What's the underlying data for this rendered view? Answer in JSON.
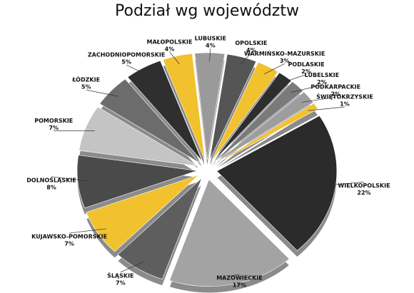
{
  "chart_data": {
    "type": "pie",
    "title": "Podział wg województw",
    "categories": [
      "LUBUSKIE",
      "OPOLSKIE",
      "WARMIŃSKO-MAZURSKIE",
      "PODLASKIE",
      "LUBELSKIE",
      "PODKARPACKIE",
      "ŚWIĘTOKRZYSKIE",
      "WIELKOPOLSKIE",
      "MAZOWIECKIE",
      "ŚLĄSKIE",
      "KUJAWSKO-POMORSKIE",
      "DOLNOŚLĄSKIE",
      "POMORSKIE",
      "ŁÓDZKIE",
      "ZACHODNIOPOMORSKIE",
      "MAŁOPOLSKIE"
    ],
    "values": [
      4,
      4,
      3,
      2,
      2,
      2,
      1,
      22,
      17,
      7,
      7,
      8,
      7,
      5,
      5,
      4
    ],
    "value_labels": [
      "4%",
      "4%",
      "3%",
      "2%",
      "2%",
      "2%",
      "1%",
      "22%",
      "17%",
      "7%",
      "7%",
      "8%",
      "7%",
      "5%",
      "5%",
      "4%"
    ],
    "colors": [
      "#9a9a9a",
      "#555555",
      "#f2c12e",
      "#2e2e2e",
      "#7a7a7a",
      "#9d9d9d",
      "#f2c12e",
      "#2b2b2b",
      "#a3a3a3",
      "#5e5e5e",
      "#f2c12e",
      "#4a4a4a",
      "#c4c4c4",
      "#6c6c6c",
      "#2f2f2f",
      "#f2c12e"
    ]
  }
}
